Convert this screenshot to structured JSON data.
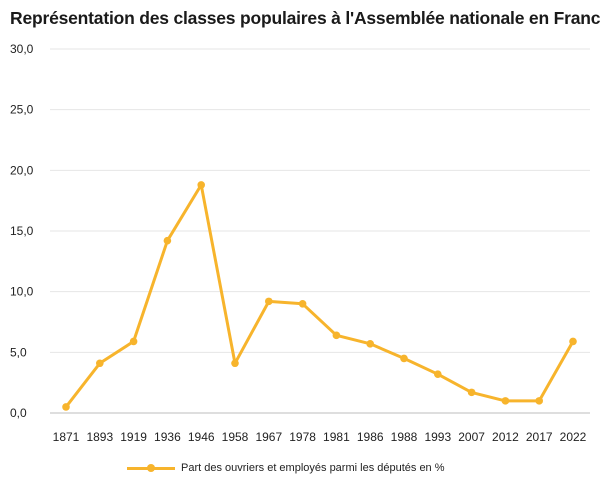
{
  "chart_data": {
    "type": "line",
    "title": "Représentation des classes populaires à l'Assemblée nationale en France",
    "xlabel": "",
    "ylabel": "",
    "ylim": [
      0,
      30
    ],
    "yticks": [
      "0,0",
      "5,0",
      "10,0",
      "15,0",
      "20,0",
      "25,0",
      "30,0"
    ],
    "categories": [
      "1871",
      "1893",
      "1919",
      "1936",
      "1946",
      "1958",
      "1967",
      "1978",
      "1981",
      "1986",
      "1988",
      "1993",
      "2007",
      "2012",
      "2017",
      "2022"
    ],
    "series": [
      {
        "name": "Part des ouvriers et employés parmi les députés en %",
        "color": "#f7b42c",
        "values": [
          0.5,
          4.1,
          5.9,
          14.2,
          18.8,
          4.1,
          9.2,
          9.0,
          6.4,
          5.7,
          4.5,
          3.2,
          1.7,
          1.0,
          1.0,
          5.9
        ]
      }
    ],
    "grid": true,
    "legend_position": "bottom"
  }
}
